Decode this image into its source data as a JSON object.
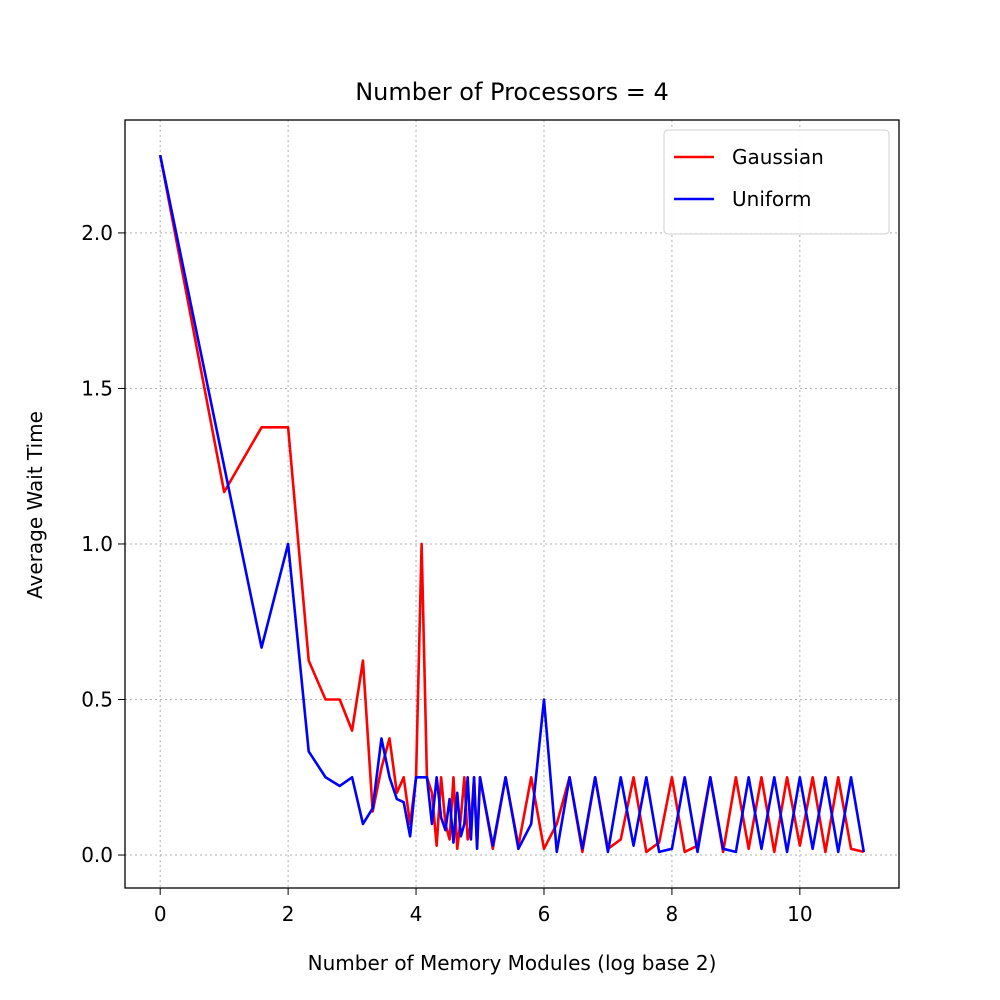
{
  "chart_data": {
    "type": "line",
    "title": "Number of Processors = 4",
    "xlabel": "Number of Memory Modules (log base 2)",
    "ylabel": "Average Wait Time",
    "x": [
      0,
      1,
      1.585,
      2,
      2.322,
      2.585,
      2.807,
      3,
      3.17,
      3.322,
      3.459,
      3.585,
      3.7,
      3.807,
      3.907,
      4,
      4.087,
      4.17,
      4.248,
      4.322,
      4.392,
      4.46,
      4.524,
      4.585,
      4.644,
      4.7,
      4.755,
      4.807,
      4.858,
      4.907,
      4.954,
      5,
      5.2,
      5.4,
      5.6,
      5.8,
      6,
      6.2,
      6.4,
      6.6,
      6.8,
      7,
      7.2,
      7.4,
      7.6,
      7.8,
      8,
      8.2,
      8.4,
      8.6,
      8.8,
      9,
      9.2,
      9.4,
      9.6,
      9.8,
      10,
      10.2,
      10.4,
      10.6,
      10.8,
      11
    ],
    "series": [
      {
        "name": "Gaussian",
        "color": "#ff0000",
        "values": [
          2.25,
          1.167,
          1.375,
          1.375,
          0.625,
          0.5,
          0.5,
          0.4,
          0.625,
          0.14,
          0.28,
          0.375,
          0.2,
          0.25,
          0.1,
          0.25,
          1.0,
          0.25,
          0.2,
          0.03,
          0.25,
          0.1,
          0.05,
          0.25,
          0.02,
          0.12,
          0.25,
          0.05,
          0.1,
          0.25,
          0.03,
          0.25,
          0.02,
          0.25,
          0.03,
          0.25,
          0.02,
          0.1,
          0.25,
          0.01,
          0.25,
          0.02,
          0.05,
          0.25,
          0.01,
          0.04,
          0.25,
          0.01,
          0.03,
          0.25,
          0.01,
          0.25,
          0.02,
          0.25,
          0.01,
          0.25,
          0.03,
          0.25,
          0.01,
          0.25,
          0.02,
          0.01
        ]
      },
      {
        "name": "Uniform",
        "color": "#0000ff",
        "values": [
          2.25,
          1.25,
          0.667,
          1.0,
          0.333,
          0.25,
          0.222,
          0.25,
          0.1,
          0.15,
          0.375,
          0.25,
          0.18,
          0.17,
          0.06,
          0.25,
          0.25,
          0.25,
          0.1,
          0.25,
          0.12,
          0.08,
          0.18,
          0.04,
          0.2,
          0.06,
          0.1,
          0.25,
          0.05,
          0.25,
          0.02,
          0.25,
          0.03,
          0.25,
          0.02,
          0.1,
          0.5,
          0.01,
          0.25,
          0.02,
          0.25,
          0.01,
          0.25,
          0.03,
          0.25,
          0.01,
          0.02,
          0.25,
          0.01,
          0.25,
          0.02,
          0.01,
          0.25,
          0.02,
          0.25,
          0.01,
          0.25,
          0.02,
          0.25,
          0.01,
          0.25,
          0.01
        ]
      }
    ],
    "xlim": [
      -0.55,
      11.55
    ],
    "ylim": [
      -0.106,
      2.363
    ],
    "xticks": [
      0,
      2,
      4,
      6,
      8,
      10
    ],
    "yticks": [
      {
        "value": 0,
        "label": "0.0"
      },
      0.5,
      {
        "value": 1,
        "label": "1.0"
      },
      1.5,
      {
        "value": 2,
        "label": "2.0"
      }
    ],
    "grid": true,
    "legend": "upper right"
  }
}
